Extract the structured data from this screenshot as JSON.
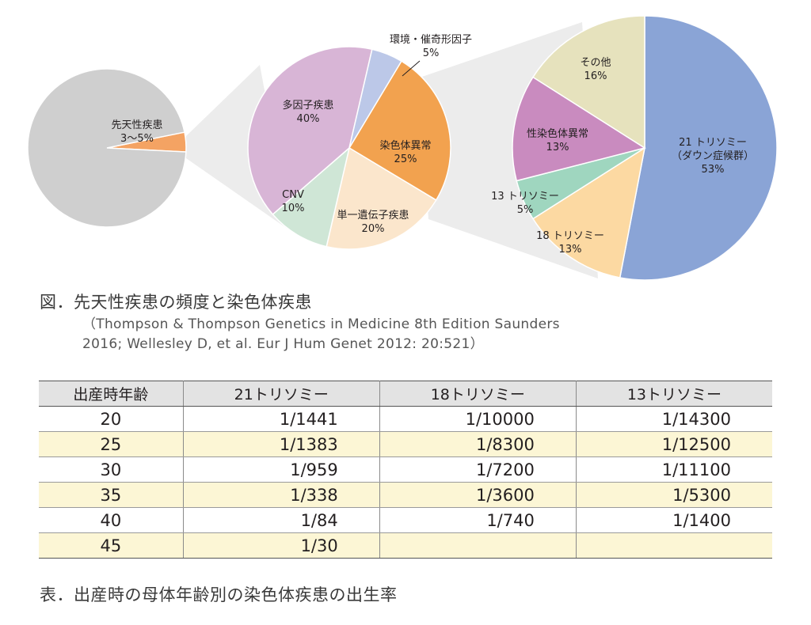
{
  "chart_data": [
    {
      "type": "pie",
      "slices": [
        {
          "label": "先天性疾患",
          "value_label": "3〜5%",
          "value": 4,
          "color": "#f4a363"
        },
        {
          "label": "",
          "value_label": "",
          "value": 96,
          "color": "#cfcfcf"
        }
      ]
    },
    {
      "type": "pie",
      "slices": [
        {
          "label": "染色体異常",
          "value_label": "25%",
          "value": 25,
          "color": "#f2a24f"
        },
        {
          "label": "単一遺伝子疾患",
          "value_label": "20%",
          "value": 20,
          "color": "#fbe6cc"
        },
        {
          "label": "CNV",
          "value_label": "10%",
          "value": 10,
          "color": "#cfe6d6"
        },
        {
          "label": "多因子疾患",
          "value_label": "40%",
          "value": 40,
          "color": "#d8b5d6"
        },
        {
          "label": "環境・催奇形因子",
          "value_label": "5%",
          "value": 5,
          "color": "#bcc8e8"
        }
      ]
    },
    {
      "type": "pie",
      "slices": [
        {
          "label": "21 トリソミー",
          "sublabel": "（ダウン症候群）",
          "value_label": "53%",
          "value": 53,
          "color": "#8aa4d6"
        },
        {
          "label": "18 トリソミー",
          "value_label": "13%",
          "value": 13,
          "color": "#fcd9a2"
        },
        {
          "label": "13 トリソミー",
          "value_label": "5%",
          "value": 5,
          "color": "#9fd6bf"
        },
        {
          "label": "性染色体異常",
          "value_label": "13%",
          "value": 13,
          "color": "#c98bbf"
        },
        {
          "label": "その他",
          "value_label": "16%",
          "value": 16,
          "color": "#e6e2bd"
        }
      ]
    }
  ],
  "figure_caption": "図．先天性疾患の頻度と染色体疾患",
  "source_line1": "（Thompson & Thompson Genetics in Medicine 8th Edition Saunders",
  "source_line2": "2016; Wellesley D, et al. Eur J Hum Genet 2012: 20:521）",
  "table": {
    "headers": [
      "出産時年齢",
      "21トリソミー",
      "18トリソミー",
      "13トリソミー"
    ],
    "rows": [
      [
        "20",
        "1/1441",
        "1/10000",
        "1/14300"
      ],
      [
        "25",
        "1/1383",
        "1/8300",
        "1/12500"
      ],
      [
        "30",
        "1/959",
        "1/7200",
        "1/11100"
      ],
      [
        "35",
        "1/338",
        "1/3600",
        "1/5300"
      ],
      [
        "40",
        "1/84",
        "1/740",
        "1/1400"
      ],
      [
        "45",
        "1/30",
        "",
        ""
      ]
    ]
  },
  "table_caption": "表．出産時の母体年齢別の染色体疾患の出生率"
}
